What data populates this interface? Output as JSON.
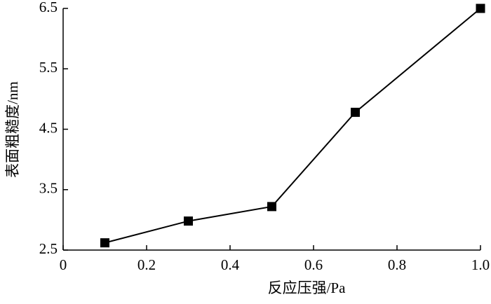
{
  "chart_data": {
    "type": "line",
    "x_label": "反应压强/Pa",
    "y_label": "表面粗糙度/nm",
    "x": [
      0.1,
      0.3,
      0.5,
      0.7,
      1.0
    ],
    "series": [
      {
        "color": "#000000",
        "values": [
          2.62,
          2.98,
          3.22,
          4.78,
          6.5
        ]
      }
    ],
    "xlim": [
      0,
      1
    ],
    "xticks": [
      0,
      0.2,
      0.4,
      0.6,
      0.8,
      {
        "value": 1,
        "label": "1.0"
      }
    ],
    "ylim": [
      2.5,
      6.5
    ],
    "yticks": [
      2.5,
      3.5,
      4.5,
      5.5,
      6.5
    ],
    "grid": false
  }
}
